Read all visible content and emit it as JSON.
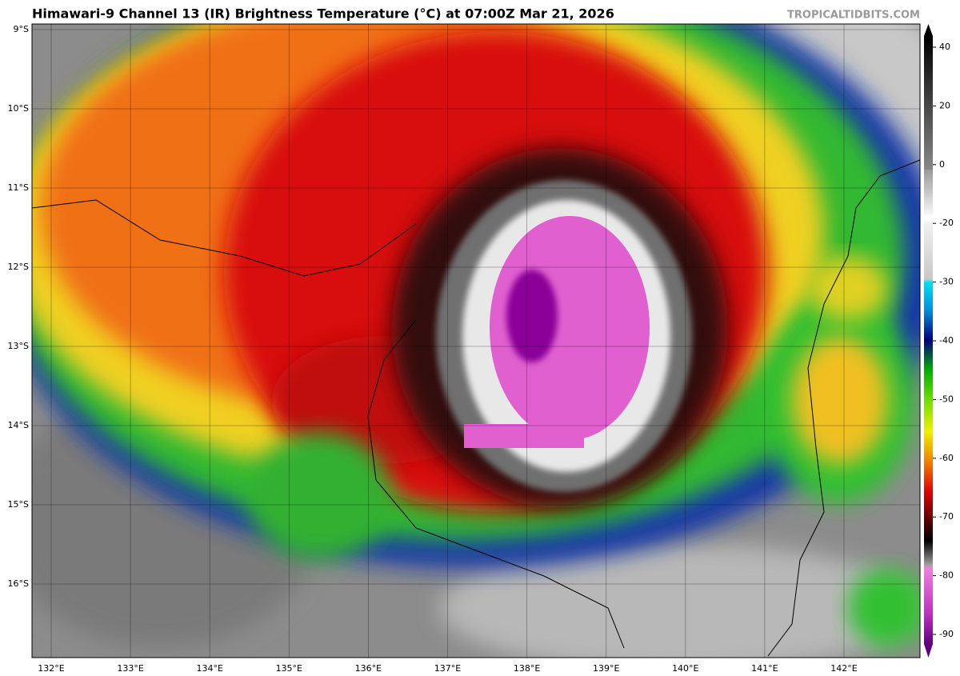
{
  "header": {
    "title": "Himawari-9 Channel 13 (IR) Brightness Temperature (°C) at 07:00Z Mar 21, 2026",
    "source": "TROPICALTIDBITS.COM"
  },
  "map": {
    "lat_labels": [
      "9°S",
      "10°S",
      "11°S",
      "12°S",
      "13°S",
      "14°S",
      "15°S",
      "16°S"
    ],
    "lon_labels": [
      "132°E",
      "133°E",
      "134°E",
      "135°E",
      "136°E",
      "137°E",
      "138°E",
      "139°E",
      "140°E",
      "141°E",
      "142°E"
    ]
  },
  "colorbar": {
    "ticks": [
      "40",
      "20",
      "0",
      "-20",
      "-30",
      "-40",
      "-50",
      "-60",
      "-70",
      "-80",
      "-90"
    ]
  }
}
